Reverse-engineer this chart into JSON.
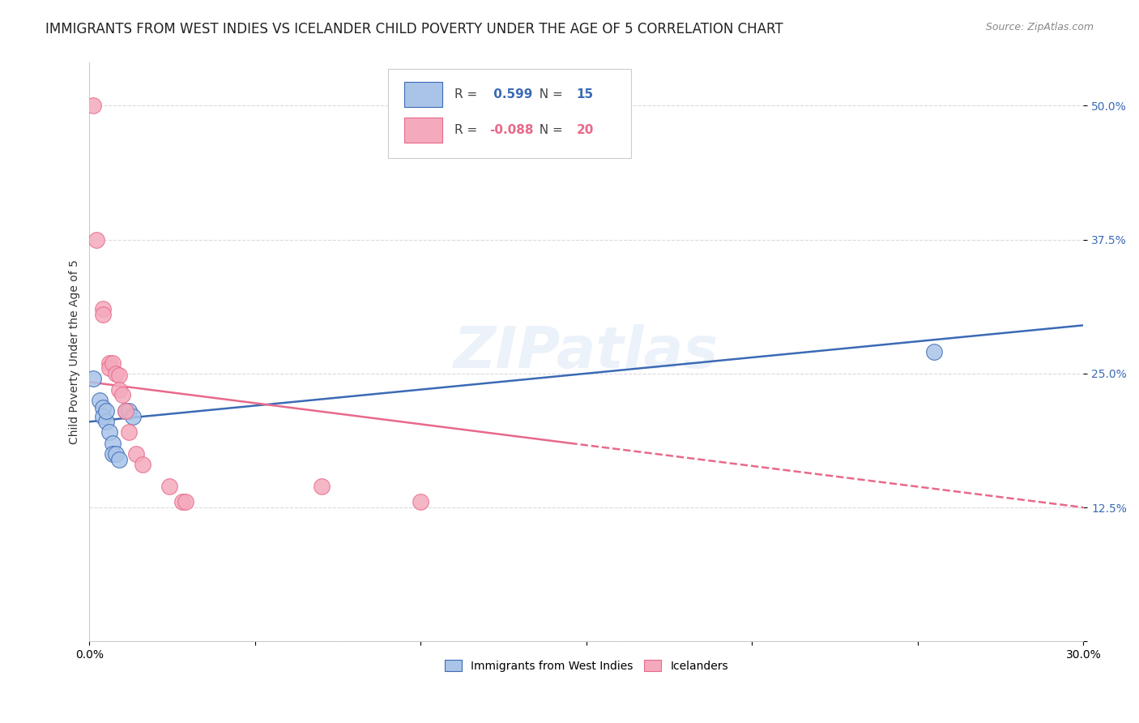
{
  "title": "IMMIGRANTS FROM WEST INDIES VS ICELANDER CHILD POVERTY UNDER THE AGE OF 5 CORRELATION CHART",
  "source": "Source: ZipAtlas.com",
  "ylabel": "Child Poverty Under the Age of 5",
  "xlim": [
    0.0,
    0.3
  ],
  "ylim": [
    0.0,
    0.54
  ],
  "yticks": [
    0.0,
    0.125,
    0.25,
    0.375,
    0.5
  ],
  "ytick_labels": [
    "",
    "12.5%",
    "25.0%",
    "37.5%",
    "50.0%"
  ],
  "xticks": [
    0.0,
    0.05,
    0.1,
    0.15,
    0.2,
    0.25,
    0.3
  ],
  "xtick_labels": [
    "0.0%",
    "",
    "",
    "",
    "",
    "",
    "30.0%"
  ],
  "blue_label": "Immigrants from West Indies",
  "pink_label": "Icelanders",
  "blue_R": 0.599,
  "blue_N": 15,
  "pink_R": -0.088,
  "pink_N": 20,
  "blue_color": "#aac4e8",
  "pink_color": "#f4aabc",
  "blue_line_color": "#3b6ab5",
  "pink_line_color": "#e8698a",
  "blue_points": [
    [
      0.001,
      0.245
    ],
    [
      0.003,
      0.225
    ],
    [
      0.004,
      0.218
    ],
    [
      0.004,
      0.21
    ],
    [
      0.005,
      0.205
    ],
    [
      0.005,
      0.215
    ],
    [
      0.006,
      0.195
    ],
    [
      0.007,
      0.185
    ],
    [
      0.007,
      0.175
    ],
    [
      0.008,
      0.175
    ],
    [
      0.009,
      0.17
    ],
    [
      0.011,
      0.215
    ],
    [
      0.012,
      0.215
    ],
    [
      0.013,
      0.21
    ],
    [
      0.255,
      0.27
    ]
  ],
  "pink_points": [
    [
      0.001,
      0.5
    ],
    [
      0.002,
      0.375
    ],
    [
      0.004,
      0.31
    ],
    [
      0.004,
      0.305
    ],
    [
      0.006,
      0.26
    ],
    [
      0.006,
      0.255
    ],
    [
      0.007,
      0.26
    ],
    [
      0.008,
      0.25
    ],
    [
      0.009,
      0.248
    ],
    [
      0.009,
      0.235
    ],
    [
      0.01,
      0.23
    ],
    [
      0.011,
      0.215
    ],
    [
      0.012,
      0.195
    ],
    [
      0.014,
      0.175
    ],
    [
      0.016,
      0.165
    ],
    [
      0.024,
      0.145
    ],
    [
      0.028,
      0.13
    ],
    [
      0.029,
      0.13
    ],
    [
      0.07,
      0.145
    ],
    [
      0.1,
      0.13
    ]
  ],
  "blue_line": [
    0.0,
    0.205,
    0.3,
    0.295
  ],
  "pink_line_solid": [
    0.0,
    0.242,
    0.145,
    0.185
  ],
  "pink_line_dashed": [
    0.145,
    0.185,
    0.3,
    0.125
  ],
  "watermark": "ZIPatlas",
  "background_color": "#ffffff",
  "grid_color": "#ddd8dd",
  "title_fontsize": 12,
  "axis_label_fontsize": 10,
  "tick_fontsize": 10
}
